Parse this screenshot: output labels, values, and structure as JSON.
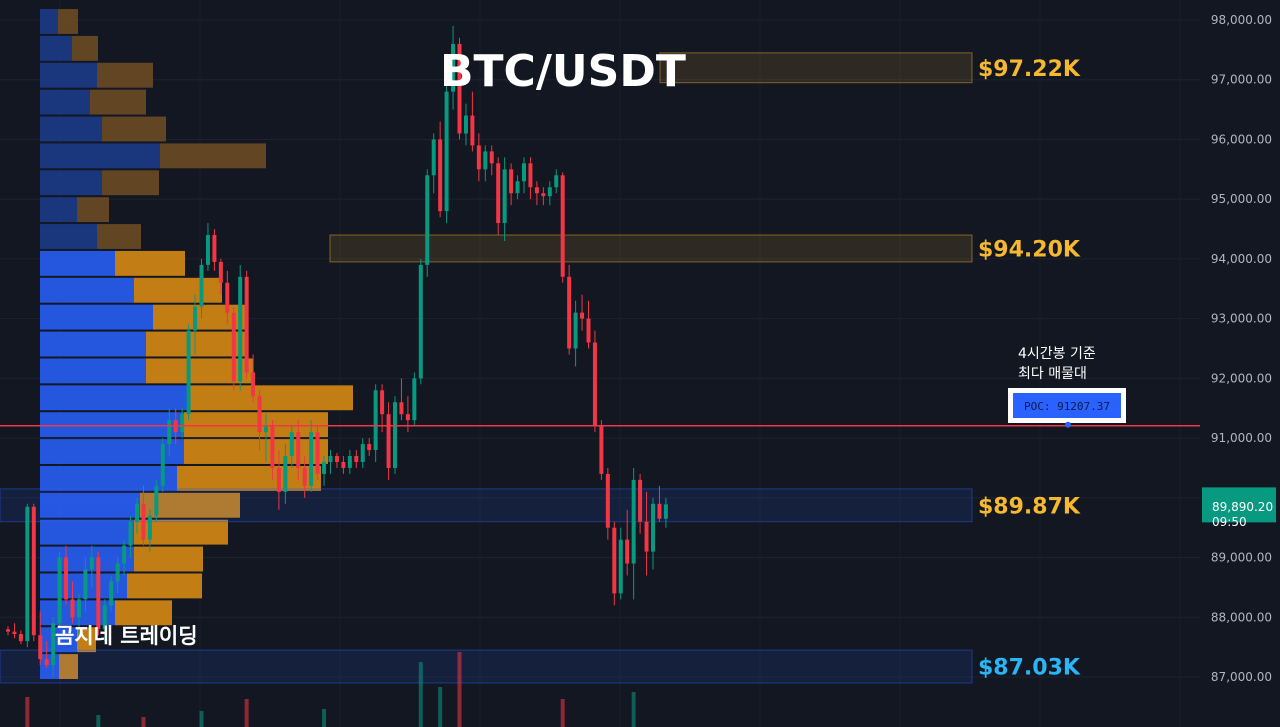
{
  "chart_data": {
    "type": "candlestick",
    "title": "BTC/USDT",
    "watermark": "곰지네 트레이딩",
    "y_axis": {
      "ylim": [
        86600,
        98250
      ],
      "ticks": [
        "98,000.00",
        "97,000.00",
        "96,000.00",
        "95,000.00",
        "94,000.00",
        "93,000.00",
        "92,000.00",
        "91,000.00",
        "90,000.00",
        "89,000.00",
        "88,000.00",
        "87,000.00"
      ],
      "tick_values": [
        98000,
        97000,
        96000,
        95000,
        94000,
        93000,
        92000,
        91000,
        90000,
        89000,
        88000,
        87000
      ]
    },
    "current_price": {
      "price_label": "89,890.20",
      "time_label": "09:50",
      "value": 89890.2,
      "color": "#089981"
    },
    "poc": {
      "label": "POC: 91207.37",
      "value": 91207.37,
      "note_line1": "4시간봉 기준",
      "note_line2": "최다 매물대",
      "line_color": "#f23645"
    },
    "zones": [
      {
        "low": 96950,
        "high": 97450,
        "label": "$97.22K",
        "label_color": "#f5b82e",
        "fill": "#f5b82e"
      },
      {
        "low": 93950,
        "high": 94400,
        "label": "$94.20K",
        "label_color": "#f5b82e",
        "fill": "#f5b82e"
      },
      {
        "low": 89600,
        "high": 90150,
        "label": "$89.87K",
        "label_color": "#f5b82e",
        "fill": "#2962ff"
      },
      {
        "low": 86900,
        "high": 87450,
        "label": "$87.03K",
        "label_color": "#29b6f6",
        "fill": "#2962ff"
      }
    ],
    "candles": [
      [
        87800,
        87850,
        87700,
        87760
      ],
      [
        87760,
        87900,
        87650,
        87720
      ],
      [
        87720,
        87780,
        87550,
        87600
      ],
      [
        87600,
        89900,
        87500,
        89850
      ],
      [
        89850,
        89900,
        87600,
        87700
      ],
      [
        87700,
        88100,
        87200,
        87300
      ],
      [
        87300,
        87600,
        87150,
        87200
      ],
      [
        87200,
        88000,
        87000,
        87900
      ],
      [
        87900,
        89100,
        87800,
        89000
      ],
      [
        89000,
        89200,
        88200,
        88300
      ],
      [
        88300,
        88600,
        87900,
        88000
      ],
      [
        88000,
        88400,
        87700,
        88300
      ],
      [
        88300,
        89000,
        88100,
        88800
      ],
      [
        88800,
        89200,
        88500,
        89000
      ],
      [
        89000,
        89100,
        87700,
        87800
      ],
      [
        87800,
        88300,
        87600,
        88200
      ],
      [
        88200,
        88700,
        88100,
        88600
      ],
      [
        88600,
        89000,
        88400,
        88900
      ],
      [
        88900,
        89300,
        88700,
        89200
      ],
      [
        89200,
        89700,
        89000,
        89600
      ],
      [
        89600,
        90000,
        89400,
        89900
      ],
      [
        89900,
        90200,
        89200,
        89300
      ],
      [
        89300,
        89800,
        89100,
        89700
      ],
      [
        89700,
        90300,
        89600,
        90200
      ],
      [
        90200,
        91000,
        90100,
        90900
      ],
      [
        90900,
        91500,
        90700,
        91300
      ],
      [
        91300,
        91500,
        90900,
        91100
      ],
      [
        91100,
        91500,
        91000,
        91400
      ],
      [
        91400,
        92900,
        91300,
        92800
      ],
      [
        92800,
        93400,
        92400,
        93200
      ],
      [
        93200,
        94000,
        93000,
        93900
      ],
      [
        93900,
        94600,
        93800,
        94400
      ],
      [
        94400,
        94500,
        93800,
        93950
      ],
      [
        93950,
        94000,
        93400,
        93600
      ],
      [
        93600,
        93800,
        92900,
        93100
      ],
      [
        93100,
        93200,
        91800,
        91950
      ],
      [
        91950,
        93900,
        91800,
        93700
      ],
      [
        93700,
        93800,
        92000,
        92100
      ],
      [
        92100,
        92400,
        91600,
        91700
      ],
      [
        91700,
        91800,
        90800,
        91100
      ],
      [
        91100,
        91400,
        90600,
        91200
      ],
      [
        91200,
        91300,
        90300,
        90500
      ],
      [
        90500,
        90800,
        89800,
        90100
      ],
      [
        90100,
        90900,
        89900,
        90700
      ],
      [
        90700,
        91200,
        90500,
        91100
      ],
      [
        91100,
        91300,
        90300,
        90500
      ],
      [
        90500,
        90700,
        90000,
        90200
      ],
      [
        90200,
        91300,
        90100,
        91100
      ],
      [
        91100,
        91200,
        90300,
        90400
      ],
      [
        90400,
        90700,
        90200,
        90600
      ],
      [
        90600,
        90800,
        90400,
        90700
      ],
      [
        90700,
        90750,
        90500,
        90600
      ],
      [
        90600,
        90700,
        90400,
        90500
      ],
      [
        90500,
        90800,
        90400,
        90700
      ],
      [
        90700,
        90800,
        90500,
        90600
      ],
      [
        90600,
        91000,
        90500,
        90900
      ],
      [
        90900,
        91000,
        90700,
        90800
      ],
      [
        90800,
        91900,
        90600,
        91800
      ],
      [
        91800,
        91900,
        91100,
        91400
      ],
      [
        91400,
        91600,
        90300,
        90500
      ],
      [
        90500,
        91700,
        90400,
        91600
      ],
      [
        91600,
        92000,
        91300,
        91400
      ],
      [
        91400,
        91700,
        91100,
        91300
      ],
      [
        91300,
        92100,
        91200,
        92000
      ],
      [
        92000,
        94000,
        91900,
        93900
      ],
      [
        93900,
        95500,
        93700,
        95400
      ],
      [
        95400,
        96100,
        95100,
        96000
      ],
      [
        96000,
        96300,
        94700,
        94800
      ],
      [
        94800,
        97000,
        94600,
        96800
      ],
      [
        96800,
        97900,
        96500,
        97600
      ],
      [
        97600,
        97700,
        96000,
        96100
      ],
      [
        96100,
        96600,
        95900,
        96400
      ],
      [
        96400,
        96800,
        95800,
        95900
      ],
      [
        95900,
        96100,
        95300,
        95500
      ],
      [
        95500,
        95900,
        95300,
        95800
      ],
      [
        95800,
        95900,
        95400,
        95600
      ],
      [
        95600,
        95700,
        94400,
        94600
      ],
      [
        94600,
        95700,
        94300,
        95500
      ],
      [
        95500,
        95600,
        94900,
        95100
      ],
      [
        95100,
        95400,
        95000,
        95300
      ],
      [
        95300,
        95700,
        95100,
        95600
      ],
      [
        95600,
        95700,
        95000,
        95200
      ],
      [
        95200,
        95300,
        94900,
        95100
      ],
      [
        95100,
        95200,
        94900,
        95050
      ],
      [
        95050,
        95300,
        94900,
        95200
      ],
      [
        95200,
        95500,
        95100,
        95400
      ],
      [
        95400,
        95450,
        93600,
        93700
      ],
      [
        93700,
        93900,
        92400,
        92500
      ],
      [
        92500,
        93300,
        92200,
        93100
      ],
      [
        93100,
        93400,
        92800,
        93000
      ],
      [
        93000,
        93300,
        92500,
        92600
      ],
      [
        92600,
        92800,
        91100,
        91200
      ],
      [
        91200,
        91300,
        90300,
        90400
      ],
      [
        90400,
        90500,
        89300,
        89500
      ],
      [
        89500,
        89600,
        88200,
        88400
      ],
      [
        88400,
        89500,
        88300,
        89300
      ],
      [
        89300,
        89800,
        88700,
        88900
      ],
      [
        88900,
        90500,
        88300,
        90300
      ],
      [
        90300,
        90400,
        89400,
        89600
      ],
      [
        89600,
        90100,
        88700,
        89100
      ],
      [
        89100,
        90000,
        88800,
        89900
      ],
      [
        89900,
        90200,
        89600,
        89650
      ],
      [
        89650,
        90000,
        89500,
        89890
      ]
    ],
    "volume_profile": [
      {
        "low": 97750,
        "high": 98200,
        "up": 18,
        "down": 20
      },
      {
        "low": 97300,
        "high": 97750,
        "up": 32,
        "down": 26
      },
      {
        "low": 96850,
        "high": 97300,
        "up": 57,
        "down": 56
      },
      {
        "low": 96400,
        "high": 96850,
        "up": 50,
        "down": 56
      },
      {
        "low": 95950,
        "high": 96400,
        "up": 62,
        "down": 64
      },
      {
        "low": 95500,
        "high": 95950,
        "up": 120,
        "down": 106
      },
      {
        "low": 95050,
        "high": 95500,
        "up": 62,
        "down": 57
      },
      {
        "low": 94600,
        "high": 95050,
        "up": 37,
        "down": 32
      },
      {
        "low": 94150,
        "high": 94600,
        "up": 57,
        "down": 44
      },
      {
        "low": 93700,
        "high": 94150,
        "up": 75,
        "down": 70
      },
      {
        "low": 93250,
        "high": 93700,
        "up": 94,
        "down": 88
      },
      {
        "low": 92800,
        "high": 93250,
        "up": 113,
        "down": 94
      },
      {
        "low": 92350,
        "high": 92800,
        "up": 106,
        "down": 101
      },
      {
        "low": 91900,
        "high": 92350,
        "up": 106,
        "down": 107
      },
      {
        "low": 91450,
        "high": 91900,
        "up": 150,
        "down": 163
      },
      {
        "low": 91000,
        "high": 91450,
        "up": 144,
        "down": 144
      },
      {
        "low": 90550,
        "high": 91000,
        "up": 144,
        "down": 144
      },
      {
        "low": 90100,
        "high": 90550,
        "up": 137,
        "down": 144
      },
      {
        "low": 89650,
        "high": 90100,
        "up": 100,
        "down": 100
      },
      {
        "low": 89200,
        "high": 89650,
        "up": 94,
        "down": 94
      },
      {
        "low": 88750,
        "high": 89200,
        "up": 94,
        "down": 69
      },
      {
        "low": 88300,
        "high": 88750,
        "up": 87,
        "down": 75
      },
      {
        "low": 87850,
        "high": 88300,
        "up": 75,
        "down": 57
      },
      {
        "low": 87400,
        "high": 87850,
        "up": 37,
        "down": 19
      },
      {
        "low": 86950,
        "high": 87400,
        "up": 19,
        "down": 19
      }
    ],
    "volume_bars": [
      {
        "candle": 3,
        "value": 30,
        "color": "#f23645"
      },
      {
        "candle": 14,
        "value": 12,
        "color": "#089981"
      },
      {
        "candle": 21,
        "value": 10,
        "color": "#f23645"
      },
      {
        "candle": 30,
        "value": 16,
        "color": "#089981"
      },
      {
        "candle": 37,
        "value": 28,
        "color": "#f23645"
      },
      {
        "candle": 49,
        "value": 18,
        "color": "#089981"
      },
      {
        "candle": 64,
        "value": 65,
        "color": "#089981"
      },
      {
        "candle": 67,
        "value": 40,
        "color": "#089981"
      },
      {
        "candle": 70,
        "value": 75,
        "color": "#f23645"
      },
      {
        "candle": 86,
        "value": 28,
        "color": "#f23645"
      },
      {
        "candle": 97,
        "value": 35,
        "color": "#089981"
      }
    ]
  }
}
